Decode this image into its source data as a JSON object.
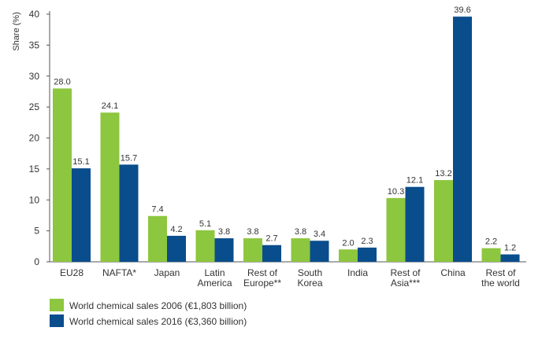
{
  "chart_data": {
    "type": "bar",
    "ylabel": "Share (%)",
    "ylim": [
      0,
      40
    ],
    "yticks": [
      0,
      5,
      10,
      15,
      20,
      25,
      30,
      35,
      40
    ],
    "grid": false,
    "legend_position": "bottom-left",
    "categories": [
      [
        "EU28"
      ],
      [
        "NAFTA*"
      ],
      [
        "Japan"
      ],
      [
        "Latin",
        "America"
      ],
      [
        "Rest of",
        "Europe**"
      ],
      [
        "South",
        "Korea"
      ],
      [
        "India"
      ],
      [
        "Rest of",
        "Asia***"
      ],
      [
        "China"
      ],
      [
        "Rest of",
        "the world"
      ]
    ],
    "series": [
      {
        "name": "World chemical sales 2006 (€1,803 billion)",
        "color": "#8DC63F",
        "values": [
          28.0,
          24.1,
          7.4,
          5.1,
          3.8,
          3.8,
          2.0,
          10.3,
          13.2,
          2.2
        ],
        "labels": [
          "28.0",
          "24.1",
          "7.4",
          "5.1",
          "3.8",
          "3.8",
          "2.0",
          "10.3",
          "13.2",
          "2.2"
        ]
      },
      {
        "name": "World chemical sales 2016 (€3,360 billion)",
        "color": "#0A4D8C",
        "values": [
          15.1,
          15.7,
          4.2,
          3.8,
          2.7,
          3.4,
          2.3,
          12.1,
          39.6,
          1.2
        ],
        "labels": [
          "15.1",
          "15.7",
          "4.2",
          "3.8",
          "2.7",
          "3.4",
          "2.3",
          "12.1",
          "39.6",
          "1.2"
        ]
      }
    ]
  }
}
